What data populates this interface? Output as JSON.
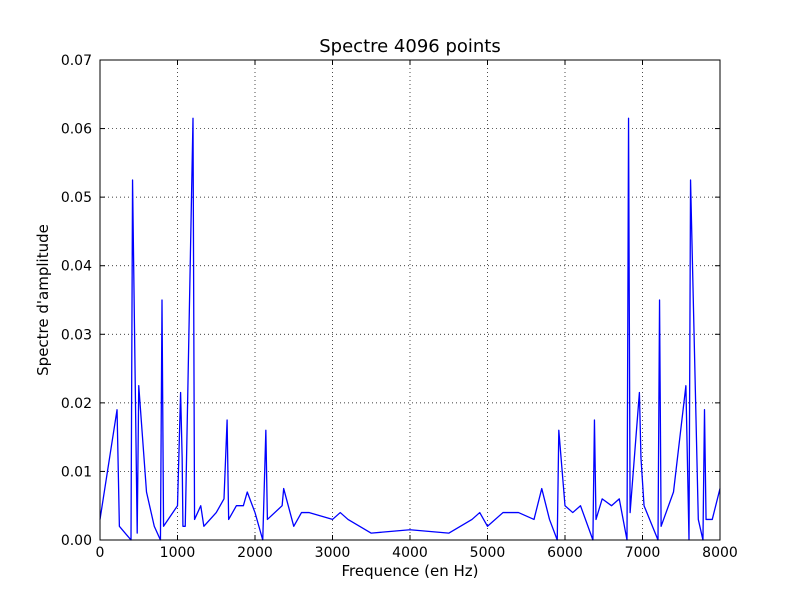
{
  "chart_data": {
    "type": "line",
    "title": "Spectre 4096 points",
    "xlabel": "Frequence (en Hz)",
    "ylabel": "Spectre d'amplitude",
    "xlim": [
      0,
      8000
    ],
    "ylim": [
      0,
      0.07
    ],
    "x_ticks": [
      0,
      1000,
      2000,
      3000,
      4000,
      5000,
      6000,
      7000,
      8000
    ],
    "x_tick_labels": [
      "0",
      "1000",
      "2000",
      "3000",
      "4000",
      "5000",
      "6000",
      "7000",
      "8000"
    ],
    "y_ticks": [
      0,
      0.01,
      0.02,
      0.03,
      0.04,
      0.05,
      0.06,
      0.07
    ],
    "y_tick_labels": [
      "0.00",
      "0.01",
      "0.02",
      "0.03",
      "0.04",
      "0.05",
      "0.06",
      "0.07"
    ],
    "grid": true,
    "series": [
      {
        "color": "#0000ff",
        "x": [
          0,
          220,
          250,
          400,
          420,
          480,
          500,
          600,
          700,
          780,
          800,
          820,
          1000,
          1040,
          1060,
          1070,
          1100,
          1200,
          1220,
          1300,
          1340,
          1500,
          1600,
          1640,
          1660,
          1760,
          1850,
          1900,
          2000,
          2100,
          2140,
          2160,
          2350,
          2370,
          2500,
          2600,
          2700,
          3000,
          3100,
          3200,
          3500,
          4000,
          4500,
          4800,
          4900,
          5000,
          5200,
          5400,
          5600,
          5700,
          5800,
          5900,
          5920,
          6000,
          6100,
          6200,
          6360,
          6380,
          6400,
          6480,
          6600,
          6700,
          6800,
          6820,
          6840,
          6960,
          6980,
          7020,
          7200,
          7220,
          7240,
          7400,
          7560,
          7600,
          7620,
          7720,
          7780,
          7800,
          7820,
          7900,
          8000
        ],
        "y": [
          0.003,
          0.019,
          0.002,
          0.0,
          0.0525,
          0.001,
          0.0225,
          0.007,
          0.002,
          0.0,
          0.035,
          0.002,
          0.005,
          0.0215,
          0.012,
          0.002,
          0.002,
          0.0615,
          0.003,
          0.005,
          0.002,
          0.004,
          0.006,
          0.0175,
          0.003,
          0.005,
          0.005,
          0.007,
          0.004,
          0.0,
          0.016,
          0.003,
          0.005,
          0.0075,
          0.002,
          0.004,
          0.004,
          0.003,
          0.004,
          0.003,
          0.001,
          0.0015,
          0.001,
          0.003,
          0.004,
          0.002,
          0.004,
          0.004,
          0.003,
          0.0075,
          0.003,
          0.0,
          0.016,
          0.005,
          0.004,
          0.005,
          0.0,
          0.0175,
          0.003,
          0.006,
          0.005,
          0.006,
          0.0,
          0.0615,
          0.004,
          0.0215,
          0.012,
          0.005,
          0.0,
          0.035,
          0.002,
          0.007,
          0.0225,
          0.0,
          0.0525,
          0.003,
          0.0,
          0.019,
          0.003,
          0.003,
          0.0075
        ]
      }
    ]
  }
}
